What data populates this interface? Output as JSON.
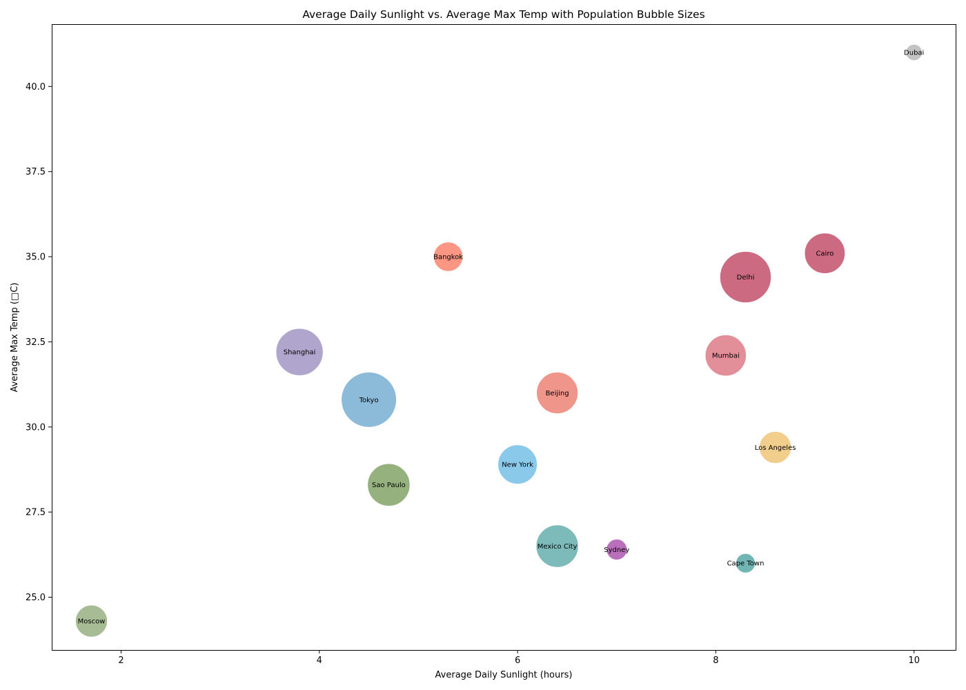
{
  "chart_data": {
    "type": "scatter",
    "title": "Average Daily Sunlight vs. Average Max Temp with Population Bubble Sizes",
    "xlabel": "Average Daily Sunlight (hours)",
    "ylabel": "Average Max Temp (□C)",
    "xlim": [
      1.3,
      10.42
    ],
    "ylim": [
      23.45,
      41.83
    ],
    "xticks": [
      2,
      4,
      6,
      8,
      10
    ],
    "yticks": [
      25.0,
      27.5,
      30.0,
      32.5,
      35.0,
      37.5,
      40.0
    ],
    "xtick_labels": [
      "2",
      "4",
      "6",
      "8",
      "10"
    ],
    "ytick_labels": [
      "25.0",
      "27.5",
      "30.0",
      "32.5",
      "35.0",
      "37.5",
      "40.0"
    ],
    "grid": false,
    "legend": "none",
    "points": [
      {
        "label": "Dubai",
        "x": 10.0,
        "y": 41.0,
        "size": 3.3,
        "color": "#bdbdbd"
      },
      {
        "label": "Cairo",
        "x": 9.1,
        "y": 35.1,
        "size": 20.0,
        "color": "#c55a72"
      },
      {
        "label": "Bangkok",
        "x": 5.3,
        "y": 35.0,
        "size": 10.5,
        "color": "#f98b76"
      },
      {
        "label": "Delhi",
        "x": 8.3,
        "y": 34.4,
        "size": 32.0,
        "color": "#c55a72"
      },
      {
        "label": "Shanghai",
        "x": 3.8,
        "y": 32.2,
        "size": 27.0,
        "color": "#a79bc8"
      },
      {
        "label": "Mumbai",
        "x": 8.1,
        "y": 32.1,
        "size": 20.5,
        "color": "#e0838f"
      },
      {
        "label": "Tokyo",
        "x": 4.5,
        "y": 30.8,
        "size": 37.0,
        "color": "#7fb3d5"
      },
      {
        "label": "Beijing",
        "x": 6.4,
        "y": 31.0,
        "size": 21.0,
        "color": "#ee8a7c"
      },
      {
        "label": "Los Angeles",
        "x": 8.6,
        "y": 29.4,
        "size": 12.5,
        "color": "#f0c97e"
      },
      {
        "label": "New York",
        "x": 6.0,
        "y": 28.9,
        "size": 18.8,
        "color": "#7dc3e8"
      },
      {
        "label": "Sao Paulo",
        "x": 4.7,
        "y": 28.3,
        "size": 22.0,
        "color": "#89aa70"
      },
      {
        "label": "Mexico City",
        "x": 6.4,
        "y": 26.5,
        "size": 21.8,
        "color": "#6fb3b3"
      },
      {
        "label": "Sydney",
        "x": 7.0,
        "y": 26.4,
        "size": 5.3,
        "color": "#b35fb3"
      },
      {
        "label": "Cape Town",
        "x": 8.3,
        "y": 26.0,
        "size": 4.6,
        "color": "#63adad"
      },
      {
        "label": "Moscow",
        "x": 1.7,
        "y": 24.3,
        "size": 12.5,
        "color": "#9db58a"
      }
    ]
  }
}
